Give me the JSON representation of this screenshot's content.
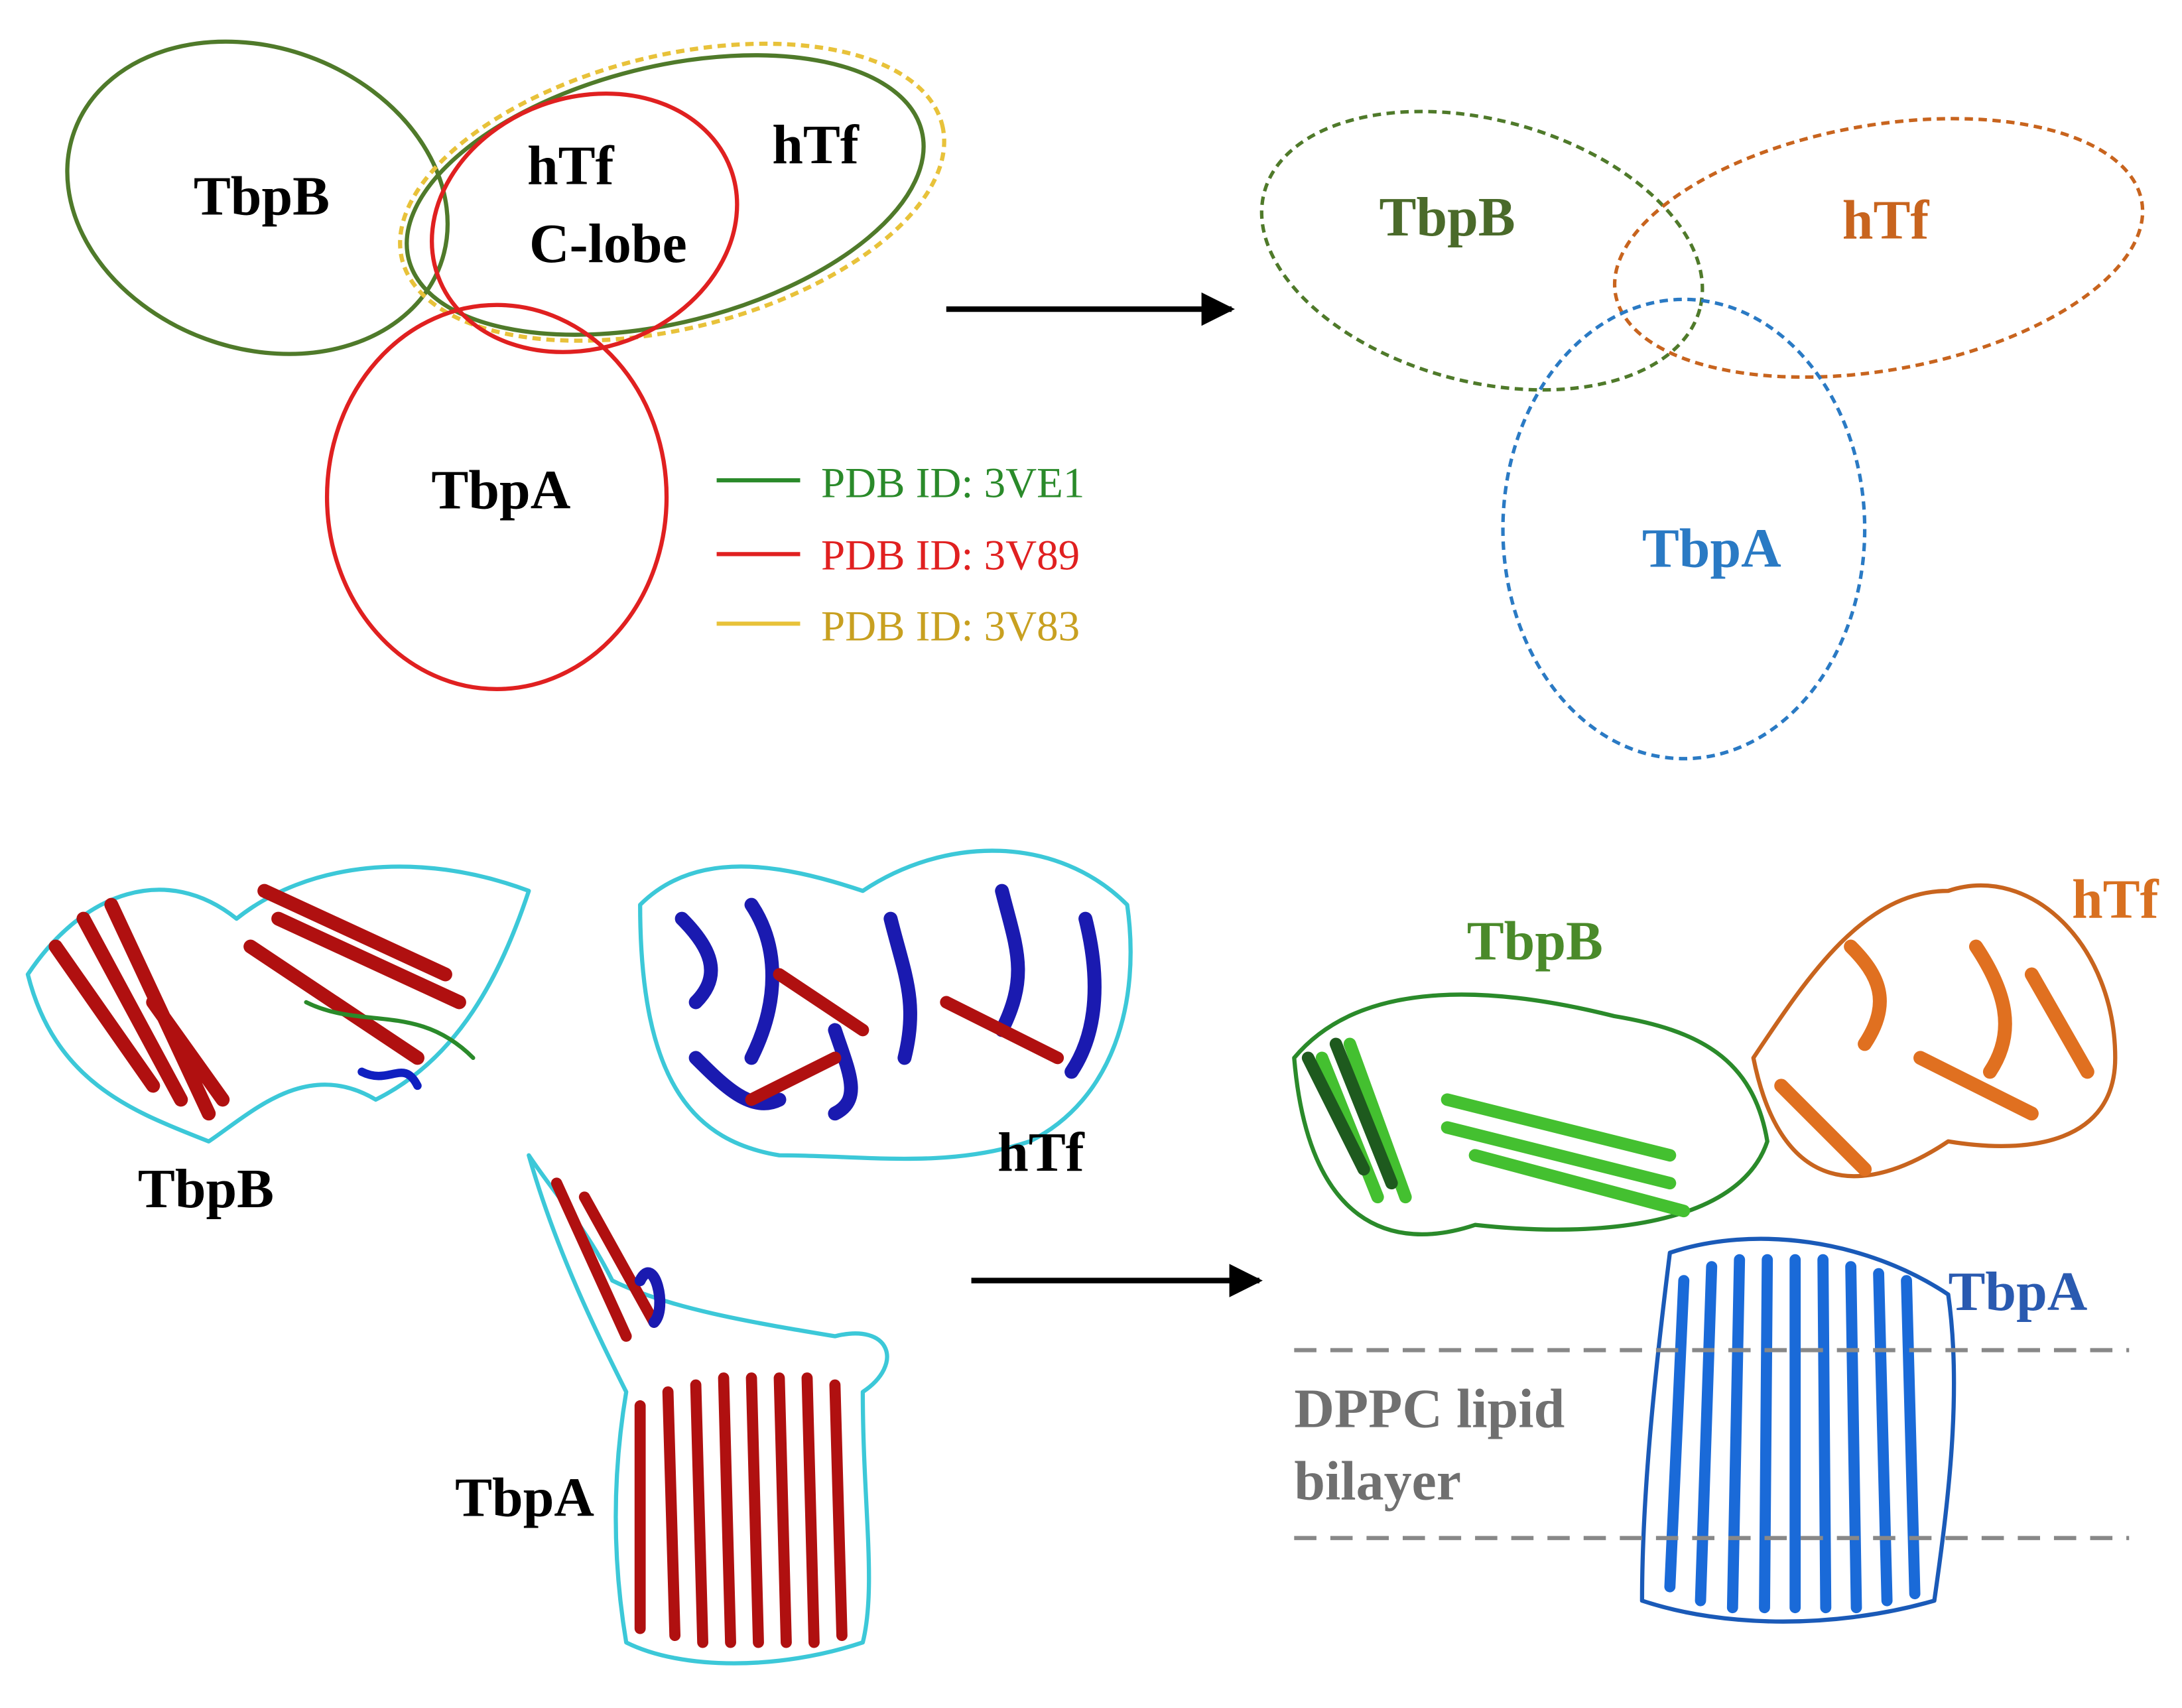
{
  "venn_before": {
    "tbpb": "TbpB",
    "clobe_line1": "hTf",
    "clobe_line2": "C-lobe",
    "htf": "hTf",
    "tbpa": "TbpA",
    "legend": [
      "PDB ID: 3VE1",
      "PDB ID: 3V89",
      "PDB ID: 3V83"
    ]
  },
  "venn_after": {
    "tbpb": "TbpB",
    "htf": "hTf",
    "tbpa": "TbpA"
  },
  "structures_before": {
    "tbpb": "TbpB",
    "htf": "hTf",
    "tbpa": "TbpA"
  },
  "structures_after": {
    "tbpb": "TbpB",
    "htf": "hTf",
    "tbpa": "TbpA",
    "membrane_line1": "DPPC lipid",
    "membrane_line2": "bilayer"
  }
}
